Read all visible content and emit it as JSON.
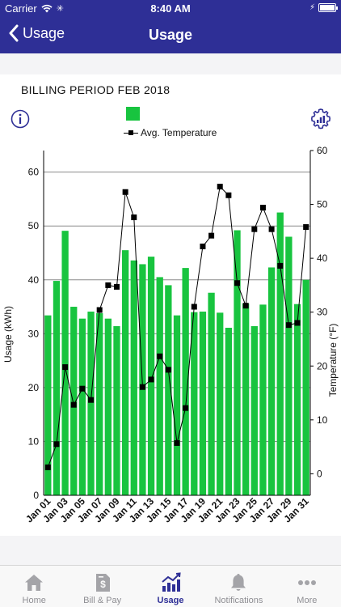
{
  "status": {
    "carrier": "Carrier",
    "time": "8:40 AM"
  },
  "nav": {
    "back_label": "Usage",
    "title": "Usage"
  },
  "billing_period": "BILLING PERIOD FEB 2018",
  "legend": {
    "temperature_label": "Avg. Temperature"
  },
  "colors": {
    "bar": "#18c43f",
    "nav": "#2e2f96",
    "line": "#000000"
  },
  "chart_data": {
    "type": "bar",
    "categories": [
      "Jan 01",
      "Jan 02",
      "Jan 03",
      "Jan 04",
      "Jan 05",
      "Jan 06",
      "Jan 07",
      "Jan 08",
      "Jan 09",
      "Jan 10",
      "Jan 11",
      "Jan 12",
      "Jan 13",
      "Jan 14",
      "Jan 15",
      "Jan 16",
      "Jan 17",
      "Jan 18",
      "Jan 19",
      "Jan 20",
      "Jan 21",
      "Jan 22",
      "Jan 23",
      "Jan 24",
      "Jan 25",
      "Jan 26",
      "Jan 27",
      "Jan 28",
      "Jan 29",
      "Jan 30",
      "Jan 31"
    ],
    "x_tick_labels": [
      "Jan 01",
      "Jan 03",
      "Jan 05",
      "Jan 07",
      "Jan 09",
      "Jan 11",
      "Jan 13",
      "Jan 15",
      "Jan 17",
      "Jan 19",
      "Jan 21",
      "Jan 23",
      "Jan 25",
      "Jan 27",
      "Jan 29",
      "Jan 31"
    ],
    "series": [
      {
        "values": [
          33.4,
          39.8,
          49.1,
          35.0,
          32.8,
          34.1,
          33.8,
          32.8,
          31.4,
          45.5,
          43.6,
          42.9,
          44.3,
          40.5,
          39.0,
          33.4,
          42.2,
          34.0,
          34.1,
          37.6,
          33.9,
          31.1,
          49.2,
          35.6,
          31.4,
          35.4,
          42.3,
          52.5,
          48.0,
          35.5,
          40.0
        ]
      },
      {
        "axis": "right",
        "values": [
          1.2,
          5.5,
          19.8,
          12.8,
          15.8,
          13.7,
          30.4,
          35.0,
          34.7,
          52.3,
          47.6,
          16.1,
          17.5,
          21.8,
          19.3,
          5.7,
          12.2,
          31.0,
          42.2,
          44.2,
          53.3,
          51.7,
          35.4,
          31.2,
          45.4,
          49.4,
          45.4,
          38.6,
          27.6,
          28.0,
          45.8
        ]
      }
    ],
    "y_left_label": "Usage (kWh)",
    "y_left_ticks": [
      0,
      10,
      20,
      30,
      40,
      50,
      60
    ],
    "y_left_range": [
      0,
      64
    ],
    "y_right_label": "Temperature (°F)",
    "y_right_ticks": [
      0,
      10,
      20,
      30,
      40,
      50,
      60
    ],
    "y_right_range": [
      -4,
      60
    ],
    "grid": true
  },
  "tabs": [
    {
      "label": "Home",
      "icon": "home-icon"
    },
    {
      "label": "Bill & Pay",
      "icon": "bill-icon"
    },
    {
      "label": "Usage",
      "icon": "usage-chart-icon",
      "active": true
    },
    {
      "label": "Notifications",
      "icon": "bell-icon"
    },
    {
      "label": "More",
      "icon": "more-dots-icon"
    }
  ]
}
